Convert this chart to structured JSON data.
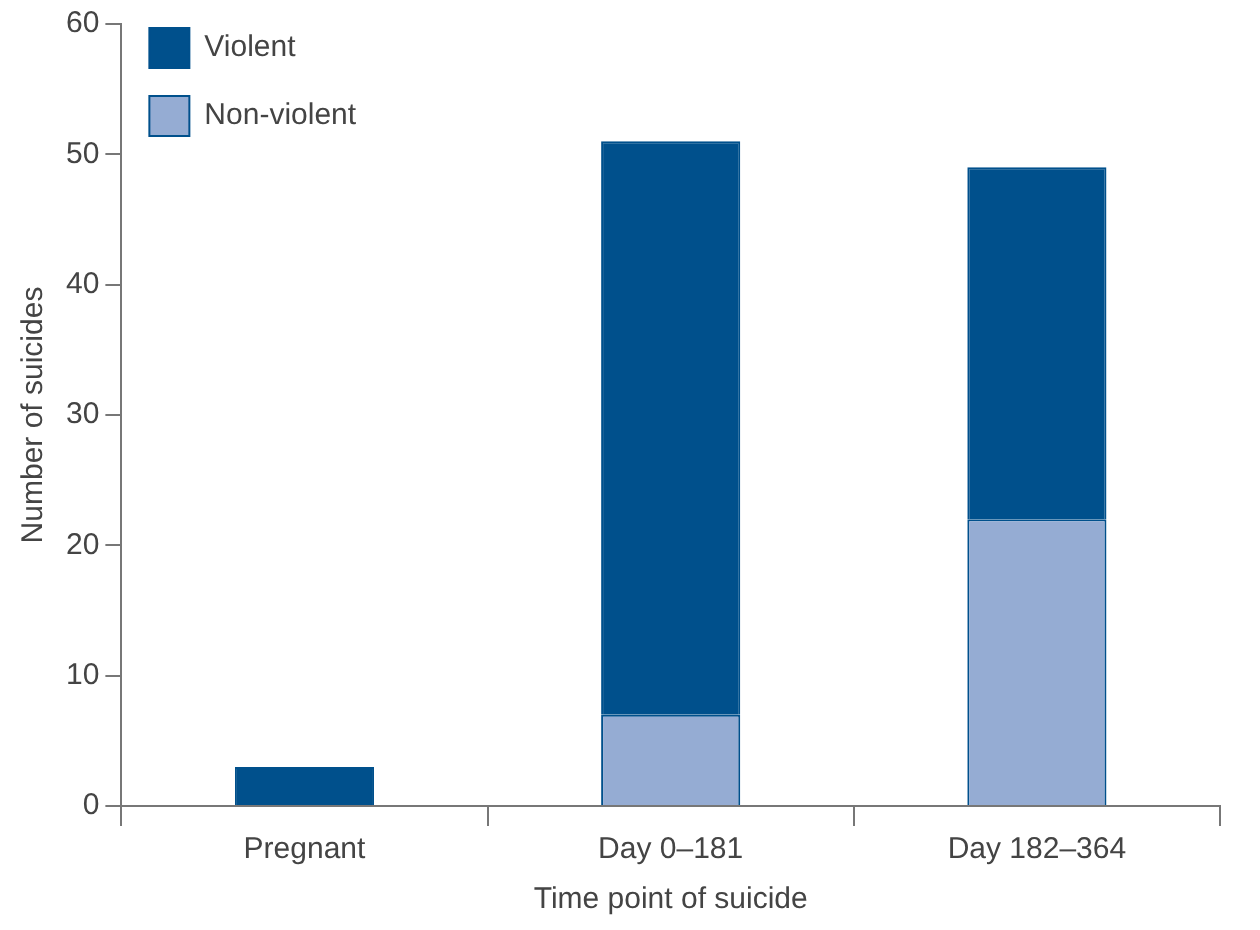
{
  "chart_data": {
    "type": "bar",
    "xlabel": "Time point of suicide",
    "ylabel": "Number of suicides",
    "categories": [
      "Pregnant",
      "Day 0–181",
      "Day 182–364"
    ],
    "series": [
      {
        "name": "Non-violent",
        "color": "#95acd3",
        "values": [
          0,
          7,
          22
        ]
      },
      {
        "name": "Violent",
        "color": "#00508c",
        "values": [
          3,
          44,
          27
        ]
      }
    ],
    "stacked": true,
    "ylim": [
      0,
      60
    ],
    "yticks": [
      0,
      10,
      20,
      30,
      40,
      50,
      60
    ],
    "grid": false,
    "legend": "top left"
  }
}
